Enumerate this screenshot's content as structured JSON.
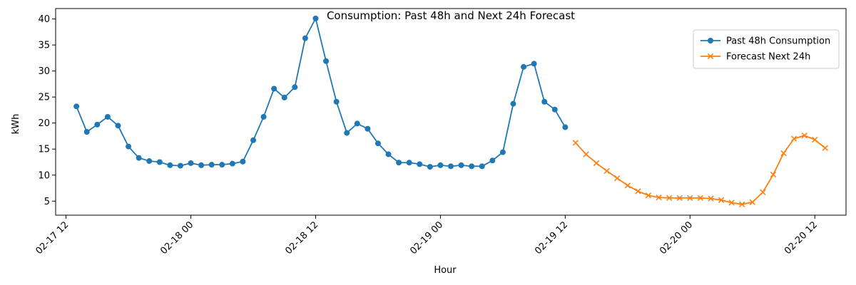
{
  "chart_data": {
    "type": "line",
    "title": "Consumption: Past 48h and Next 24h Forecast",
    "xlabel": "Hour",
    "ylabel": "kWh",
    "x_ticks": [
      "02-17 12",
      "02-18 00",
      "02-18 12",
      "02-19 00",
      "02-19 12",
      "02-20 00",
      "02-20 12"
    ],
    "y_ticks": [
      5,
      10,
      15,
      20,
      25,
      30,
      35,
      40
    ],
    "xlim": [
      "2025-02-17 11:00",
      "2025-02-20 15:00"
    ],
    "ylim": [
      2.3,
      42.0
    ],
    "legend_position": "top-right",
    "series": [
      {
        "name": "Past 48h Consumption",
        "color": "#1f77b4",
        "marker": "circle",
        "start": "2025-02-17 13:00",
        "step_hours": 1,
        "values": [
          23.2,
          18.3,
          19.7,
          21.2,
          19.5,
          15.5,
          13.3,
          12.7,
          12.5,
          11.9,
          11.8,
          12.3,
          11.9,
          12.0,
          12.0,
          12.2,
          12.6,
          16.7,
          21.2,
          26.6,
          24.9,
          26.9,
          36.3,
          40.1,
          31.9,
          24.1,
          18.1,
          19.9,
          18.9,
          16.1,
          14.0,
          12.4,
          12.4,
          12.1,
          11.6,
          11.9,
          11.7,
          11.9,
          11.7,
          11.7,
          12.8,
          14.4,
          23.7,
          30.8,
          31.4,
          24.1,
          22.6,
          19.2
        ]
      },
      {
        "name": "Forecast Next 24h",
        "color": "#ff7f0e",
        "marker": "x",
        "start": "2025-02-19 13:00",
        "step_hours": 1,
        "values": [
          16.2,
          14.0,
          12.3,
          10.8,
          9.4,
          8.0,
          6.9,
          6.1,
          5.7,
          5.6,
          5.6,
          5.6,
          5.6,
          5.5,
          5.2,
          4.7,
          4.4,
          4.8,
          6.7,
          10.1,
          14.2,
          17.0,
          17.6,
          16.8,
          15.2
        ]
      }
    ]
  }
}
